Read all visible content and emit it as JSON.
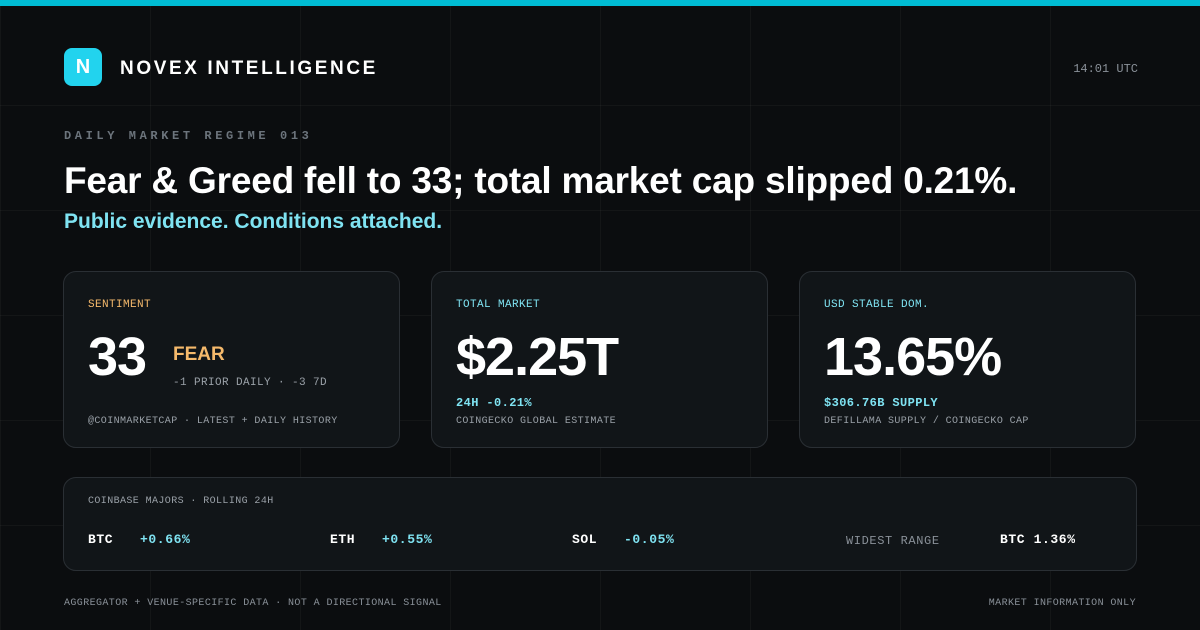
{
  "brand": {
    "logo_letter": "N",
    "name": "NOVEX INTELLIGENCE",
    "time": "14:01 UTC",
    "accent_color": "#22d3ee"
  },
  "hero": {
    "eyebrow": "DAILY MARKET REGIME 013",
    "headline": "Fear & Greed fell to 33; total market cap slipped 0.21%.",
    "subline": "Public evidence. Conditions attached."
  },
  "cards": {
    "sentiment": {
      "label": "SENTIMENT",
      "value": "33",
      "classification": "FEAR",
      "delta": "-1 PRIOR DAILY · -3 7D",
      "source": "@COINMARKETCAP · LATEST + DAILY HISTORY",
      "label_color": "#f5b96b"
    },
    "total_market": {
      "label": "TOTAL MARKET",
      "value": "$2.25T",
      "change": "24H -0.21%",
      "source": "COINGECKO GLOBAL ESTIMATE",
      "label_color": "#7fe3f2"
    },
    "stable_dom": {
      "label": "USD STABLE DOM.",
      "value": "13.65%",
      "supply": "$306.76B SUPPLY",
      "source": "DEFILLAMA SUPPLY / COINGECKO CAP",
      "label_color": "#7fe3f2"
    }
  },
  "majors": {
    "label": "COINBASE MAJORS · ROLLING 24H",
    "assets": [
      {
        "symbol": "BTC",
        "change": "+0.66%"
      },
      {
        "symbol": "ETH",
        "change": "+0.55%"
      },
      {
        "symbol": "SOL",
        "change": "-0.05%"
      }
    ],
    "widest_label": "WIDEST RANGE",
    "widest_value": "BTC 1.36%"
  },
  "footer": {
    "left": "AGGREGATOR + VENUE-SPECIFIC DATA · NOT A DIRECTIONAL SIGNAL",
    "right": "MARKET INFORMATION ONLY"
  }
}
